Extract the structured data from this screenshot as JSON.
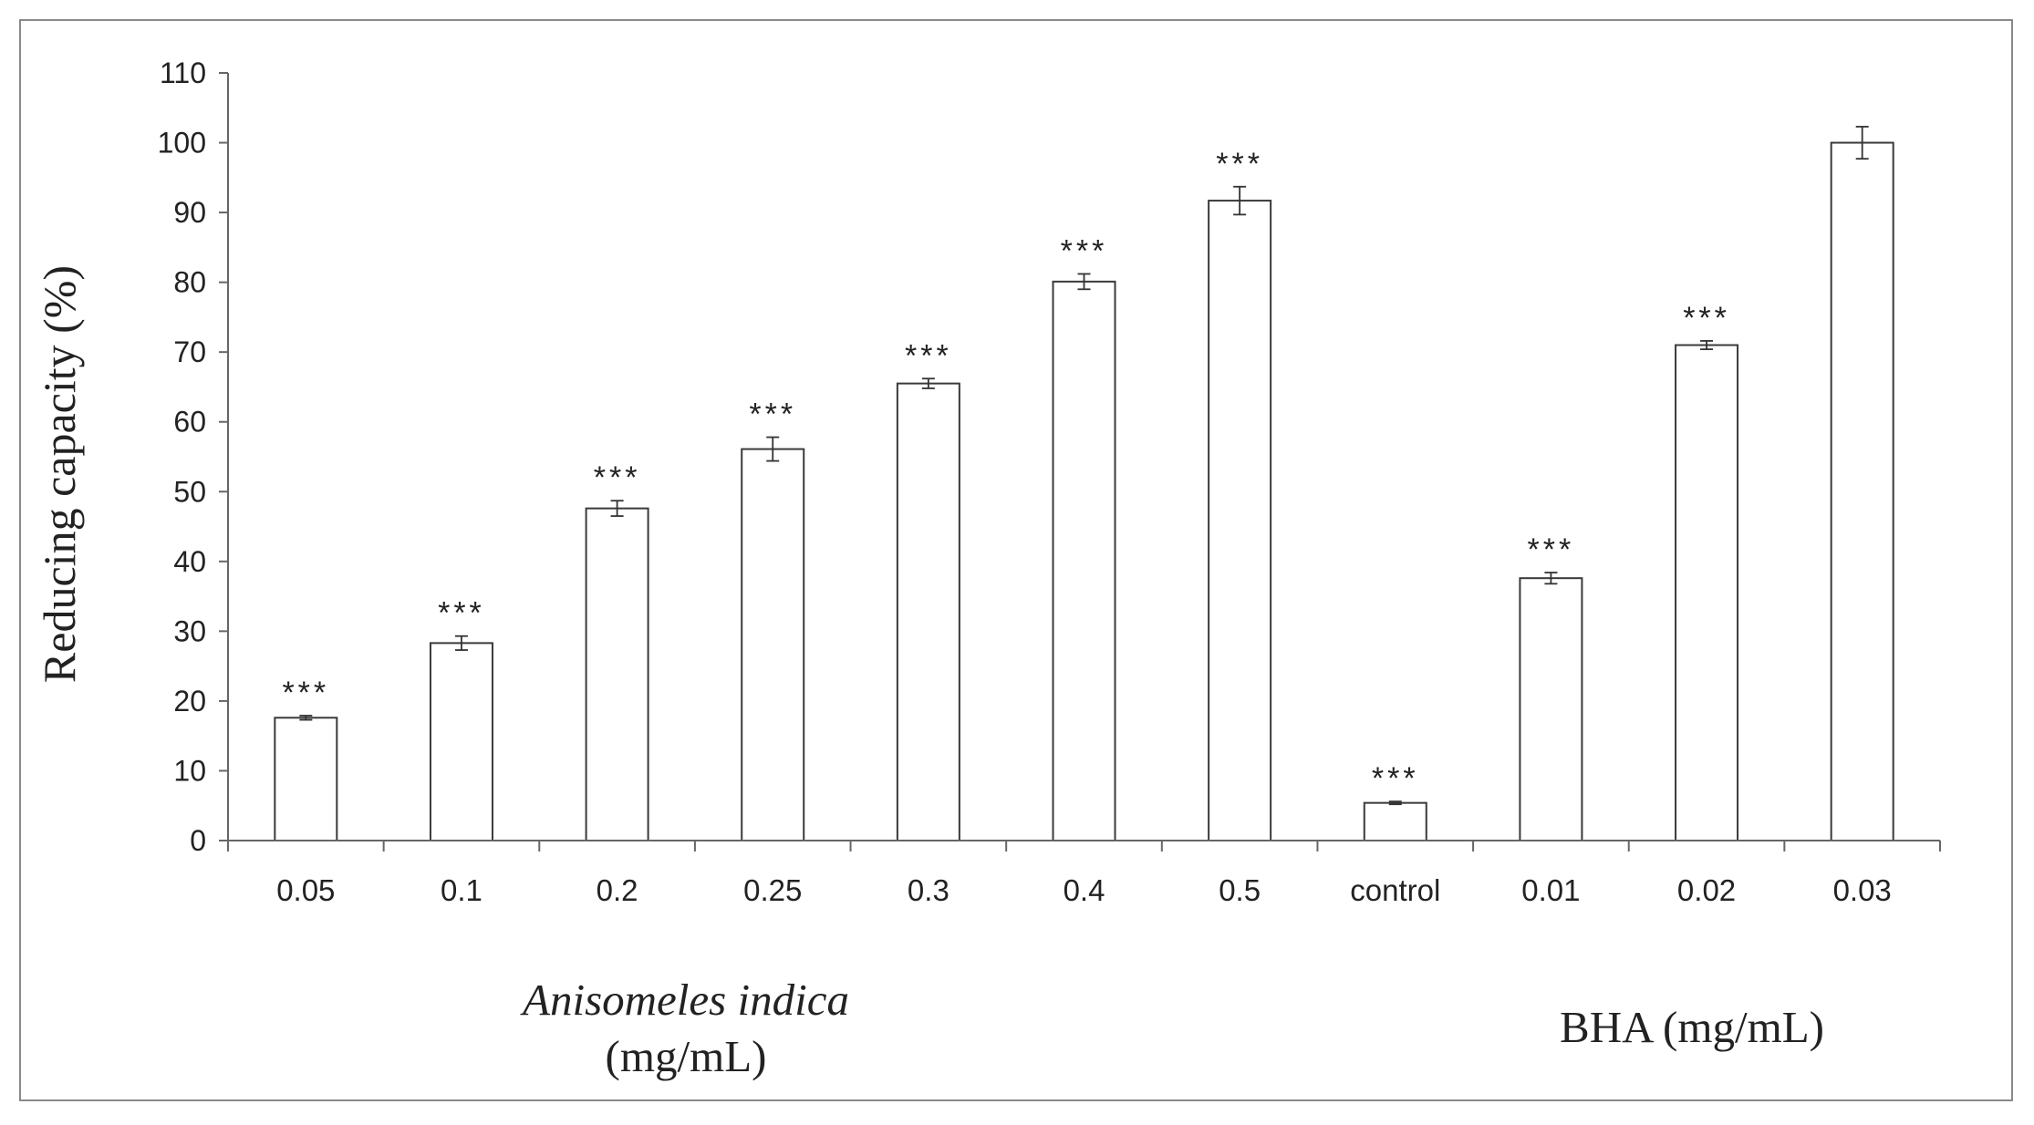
{
  "chart_data": {
    "type": "bar",
    "title": "",
    "xlabel": "",
    "ylabel": "Reducing capacity (%)",
    "ylim": [
      0,
      110
    ],
    "yticks": [
      0,
      10,
      20,
      30,
      40,
      50,
      60,
      70,
      80,
      90,
      100,
      110
    ],
    "grid": false,
    "legend": "none",
    "categories": [
      "0.05",
      "0.1",
      "0.2",
      "0.25",
      "0.3",
      "0.4",
      "0.5",
      "control",
      "0.01",
      "0.02",
      "0.03"
    ],
    "values": [
      17.6,
      28.3,
      47.6,
      56.1,
      65.5,
      80.1,
      91.7,
      5.4,
      37.6,
      71.0,
      100.0
    ],
    "errors": [
      0.3,
      1.0,
      1.1,
      1.7,
      0.7,
      1.1,
      2.0,
      0.2,
      0.8,
      0.6,
      2.3
    ],
    "annotations": [
      "***",
      "***",
      "***",
      "***",
      "***",
      "***",
      "***",
      "***",
      "***",
      "***",
      ""
    ],
    "group_labels": [
      {
        "line1": "Anisomeles indica",
        "line2": "(mg/mL)"
      },
      {
        "line1": "BHA (mg/mL)",
        "line2": ""
      }
    ],
    "colors": {
      "bar_fill": "#ffffff",
      "bar_stroke": "#3a3a3a",
      "axis": "#666666",
      "frame": "#8a8a8a",
      "text": "#222222"
    }
  }
}
